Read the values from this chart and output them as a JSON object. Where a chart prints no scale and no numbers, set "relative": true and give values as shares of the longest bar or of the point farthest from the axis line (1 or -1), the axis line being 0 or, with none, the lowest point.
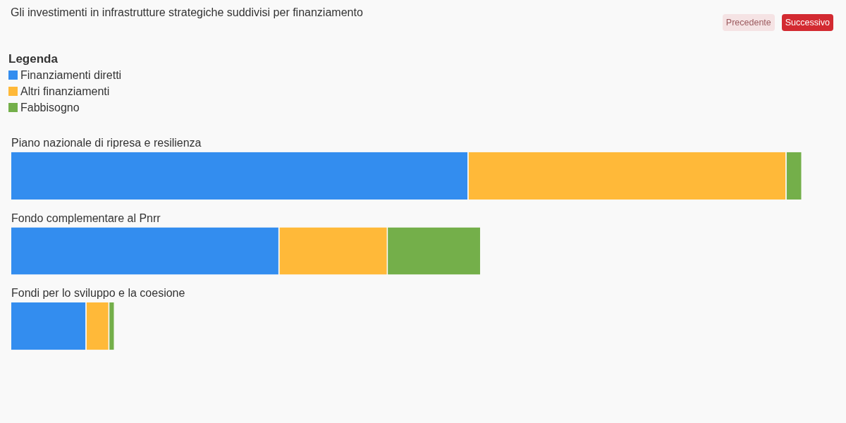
{
  "chart_data": {
    "type": "bar",
    "title": "Gli investimenti in infrastrutture strategiche suddivisi per finanziamento",
    "categories": [
      "Piano nazionale di ripresa e resilienza",
      "Fondo complementare al Pnrr",
      "Fondi per lo sviluppo e la coesione"
    ],
    "orientation": "horizontal",
    "stacked": true,
    "relative": true,
    "series": [
      {
        "name": "Finanziamenti diretti",
        "color": "#338def",
        "values": [
          0.578,
          0.339,
          0.095
        ]
      },
      {
        "name": "Altri finanziamenti",
        "color": "#ffb939",
        "values": [
          0.402,
          0.137,
          0.029
        ]
      },
      {
        "name": "Fabbisogno",
        "color": "#74af4a",
        "values": [
          0.02,
          0.118,
          0.007
        ]
      }
    ],
    "legend": "top left",
    "legend_title": "Legenda",
    "annotations": [
      "Precedente",
      "Successivo"
    ]
  }
}
